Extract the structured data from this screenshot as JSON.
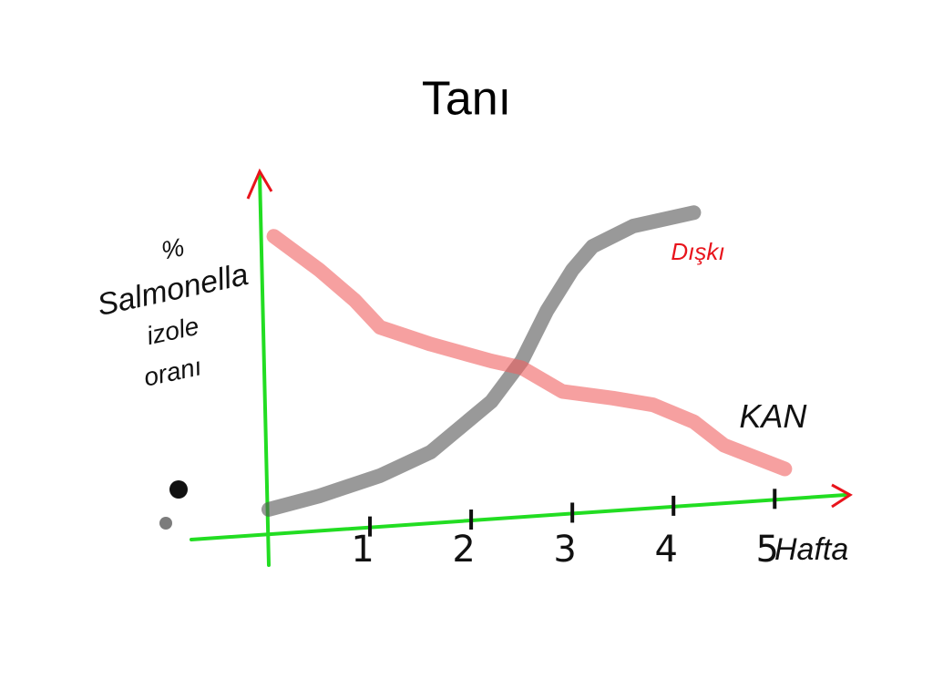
{
  "title": "Tanı",
  "chart_data": {
    "type": "line",
    "ylabel_lines": [
      "%",
      "Salmonella",
      "izole",
      "oranı"
    ],
    "xlabel": "Hafta",
    "xlim": [
      0,
      5.7
    ],
    "ylim": [
      0,
      100
    ],
    "xticks": [
      1,
      2,
      3,
      4,
      5
    ],
    "axis_color": "#22dd22",
    "arrow_color": "#e8141c",
    "series": [
      {
        "name": "Dışkı",
        "color": "#555555",
        "label_color": "#e8141c",
        "x": [
          0,
          0.5,
          1.1,
          1.6,
          2.2,
          2.5,
          2.75,
          3.0,
          3.2,
          3.6,
          4.2
        ],
        "values": [
          3,
          7,
          13,
          20,
          35,
          47,
          62,
          74,
          81,
          87,
          91
        ]
      },
      {
        "name": "KAN",
        "color": "#f06060",
        "label_color": "#111111",
        "x": [
          0.05,
          0.5,
          0.85,
          1.1,
          1.6,
          2.2,
          2.5,
          2.9,
          3.4,
          3.8,
          4.2,
          4.5,
          5.1
        ],
        "values": [
          84,
          74,
          65,
          57,
          52,
          47,
          45,
          38,
          36,
          34,
          29,
          22,
          15
        ]
      }
    ]
  }
}
